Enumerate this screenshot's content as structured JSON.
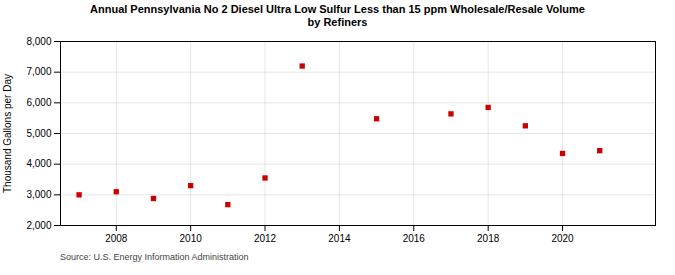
{
  "chart_data": {
    "type": "scatter",
    "title": "Annual Pennsylvania No 2 Diesel Ultra Low Sulfur Less than 15 ppm Wholesale/Resale Volume",
    "subtitle": "by Refiners",
    "ylabel": "Thousand Gallons per Day",
    "caption": "Source: U.S. Energy Information Administration",
    "x": [
      2007,
      2008,
      2009,
      2010,
      2011,
      2012,
      2013,
      2015,
      2017,
      2018,
      2019,
      2020,
      2021
    ],
    "values": [
      3000,
      3100,
      2880,
      3300,
      2680,
      3550,
      7200,
      5480,
      5640,
      5850,
      5250,
      4350,
      4440
    ],
    "color": "#cc0000",
    "marker": "square",
    "xlim": [
      2006.5,
      2022.5
    ],
    "xticks": [
      2008,
      2010,
      2012,
      2014,
      2016,
      2018,
      2020
    ],
    "ylim": [
      2000,
      8000
    ],
    "yticks": [
      {
        "value": 2000,
        "label": "2,000"
      },
      {
        "value": 3000,
        "label": "3,000"
      },
      {
        "value": 4000,
        "label": "4,000"
      },
      {
        "value": 5000,
        "label": "5,000"
      },
      {
        "value": 6000,
        "label": "6,000"
      },
      {
        "value": 7000,
        "label": "7,000"
      },
      {
        "value": 8000,
        "label": "8,000"
      }
    ],
    "grid": true
  }
}
